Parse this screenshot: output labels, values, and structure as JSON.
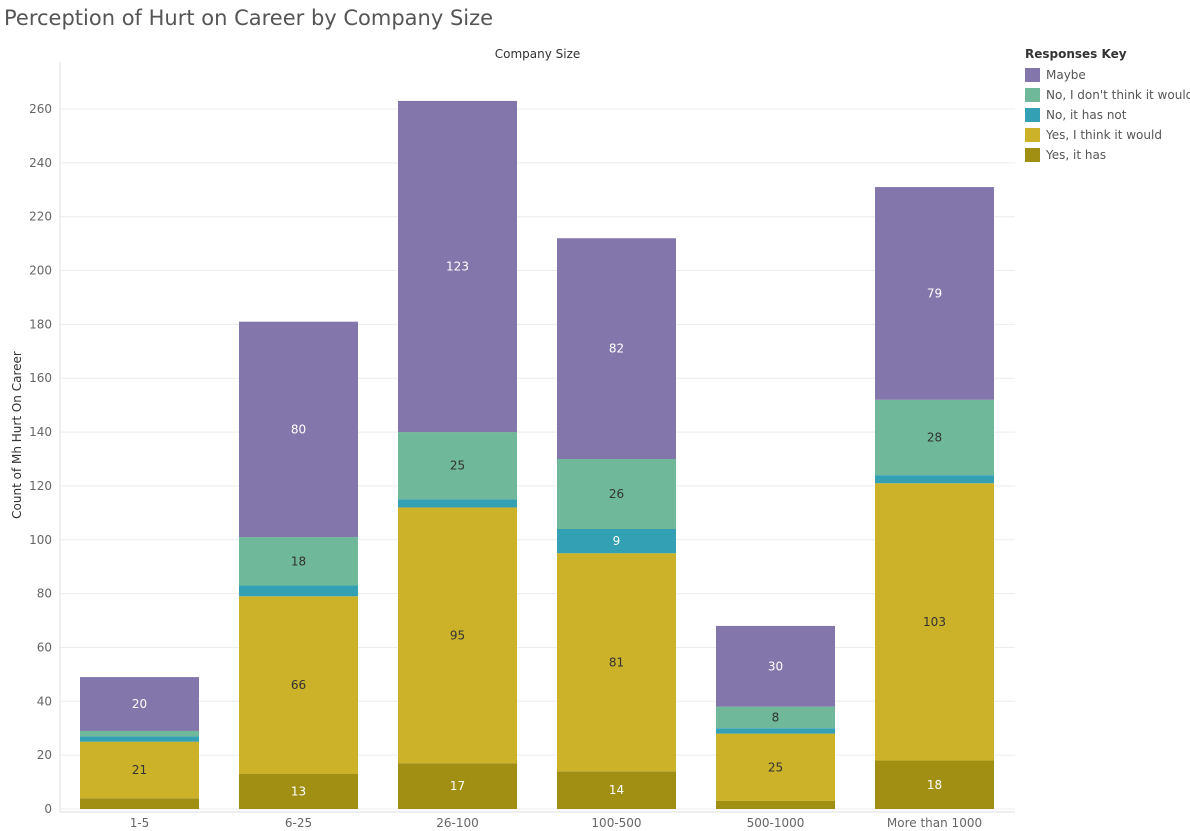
{
  "chart_data": {
    "type": "bar",
    "stacked": true,
    "title": "Perception of Hurt on Career by Company Size",
    "column_header": "Company Size",
    "ylabel": "Count of Mh Hurt On Career",
    "ylim": [
      0,
      270
    ],
    "yticks": [
      0,
      20,
      40,
      60,
      80,
      100,
      120,
      140,
      160,
      180,
      200,
      220,
      240,
      260
    ],
    "grid": true,
    "legend_title": "Responses Key",
    "legend_position": "right",
    "categories": [
      "1-5",
      "6-25",
      "26-100",
      "100-500",
      "500-1000",
      "More than 1000"
    ],
    "series": [
      {
        "name": "Yes, it has",
        "color": "#a18f14",
        "label_color": "#ffffff",
        "values": [
          4,
          13,
          17,
          14,
          3,
          18
        ],
        "show_labels": [
          false,
          true,
          true,
          true,
          false,
          true
        ]
      },
      {
        "name": "Yes, I think it would",
        "color": "#cbb229",
        "label_color": "#333333",
        "values": [
          21,
          66,
          95,
          81,
          25,
          103
        ],
        "show_labels": [
          true,
          true,
          true,
          true,
          true,
          true
        ]
      },
      {
        "name": "No, it has not",
        "color": "#34a0b4",
        "label_color": "#ffffff",
        "values": [
          2,
          4,
          3,
          9,
          2,
          3
        ],
        "show_labels": [
          false,
          false,
          false,
          true,
          false,
          false
        ]
      },
      {
        "name": "No, I don't think it would",
        "color": "#6fb899",
        "label_color": "#333333",
        "values": [
          2,
          18,
          25,
          26,
          8,
          28
        ],
        "show_labels": [
          false,
          true,
          true,
          true,
          true,
          true
        ]
      },
      {
        "name": "Maybe",
        "color": "#8376aa",
        "label_color": "#ffffff",
        "values": [
          20,
          80,
          123,
          82,
          30,
          79
        ],
        "show_labels": [
          true,
          true,
          true,
          true,
          true,
          true
        ]
      }
    ],
    "legend_order": [
      "Maybe",
      "No, I don't think it would",
      "No, it has not",
      "Yes, I think it would",
      "Yes, it has"
    ]
  }
}
